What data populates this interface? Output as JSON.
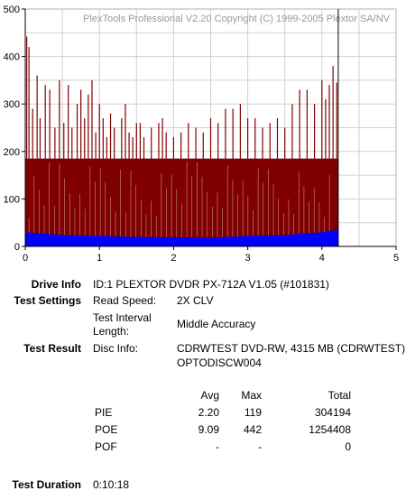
{
  "chart_data": {
    "type": "bar",
    "watermark": "PlexTools Professional V2.20 Copyright (C) 1999-2005 Plextor SA/NV",
    "xlim": [
      0,
      5
    ],
    "ylim": [
      0,
      500
    ],
    "x_ticks": [
      "0",
      "1",
      "2",
      "3",
      "4",
      "5"
    ],
    "y_ticks": [
      "0",
      "100",
      "200",
      "300",
      "400",
      "500"
    ],
    "grid": true,
    "end_marker_x": 4.22,
    "series": [
      {
        "color": "#800000",
        "baseline_level": 185,
        "x": [
          0.02,
          0.05,
          0.1,
          0.16,
          0.2,
          0.27,
          0.33,
          0.4,
          0.46,
          0.52,
          0.58,
          0.63,
          0.7,
          0.75,
          0.8,
          0.85,
          0.9,
          0.95,
          1.0,
          1.05,
          1.1,
          1.15,
          1.2,
          1.3,
          1.35,
          1.4,
          1.45,
          1.5,
          1.55,
          1.6,
          1.7,
          1.8,
          1.85,
          1.9,
          2.0,
          2.1,
          2.2,
          2.3,
          2.4,
          2.5,
          2.6,
          2.7,
          2.8,
          2.9,
          3.0,
          3.1,
          3.2,
          3.3,
          3.4,
          3.5,
          3.6,
          3.7,
          3.8,
          3.9,
          4.0,
          4.05,
          4.1,
          4.15,
          4.2
        ],
        "values": [
          442,
          420,
          290,
          360,
          270,
          340,
          330,
          250,
          350,
          260,
          340,
          250,
          300,
          330,
          270,
          320,
          350,
          240,
          300,
          270,
          230,
          280,
          250,
          270,
          300,
          240,
          230,
          260,
          260,
          230,
          250,
          260,
          270,
          240,
          230,
          240,
          260,
          250,
          240,
          270,
          260,
          290,
          290,
          300,
          270,
          270,
          250,
          260,
          270,
          250,
          300,
          330,
          330,
          300,
          350,
          310,
          340,
          380,
          345
        ]
      },
      {
        "color": "#0000ff",
        "x": [
          0.0,
          0.5,
          1.0,
          1.5,
          2.0,
          2.5,
          3.0,
          3.5,
          4.0,
          4.22
        ],
        "values": [
          30,
          24,
          22,
          20,
          19,
          18,
          22,
          24,
          30,
          36
        ]
      }
    ]
  },
  "drive_info": {
    "label": "Drive Info",
    "value": "ID:1 PLEXTOR DVDR PX-712A V1.05 (#101831)"
  },
  "test_settings": {
    "label": "Test Settings",
    "read_speed_label": "Read Speed:",
    "read_speed_value": "2X CLV",
    "interval_label_1": "Test Interval",
    "interval_label_2": "Length:",
    "interval_value": "Middle Accuracy"
  },
  "test_result": {
    "label": "Test Result",
    "disc_info_label": "Disc Info:",
    "disc_info_line1": "CDRWTEST DVD-RW, 4315 MB (CDRWTEST)",
    "disc_info_line2": "OPTODISCW004"
  },
  "stats": {
    "headers": {
      "avg": "Avg",
      "max": "Max",
      "total": "Total"
    },
    "rows": [
      {
        "name": "PIE",
        "avg": "2.20",
        "max": "119",
        "total": "304194"
      },
      {
        "name": "POE",
        "avg": "9.09",
        "max": "442",
        "total": "1254408"
      },
      {
        "name": "POF",
        "avg": "-",
        "max": "-",
        "total": "0"
      }
    ]
  },
  "test_duration": {
    "label": "Test Duration",
    "value": "0:10:18"
  }
}
